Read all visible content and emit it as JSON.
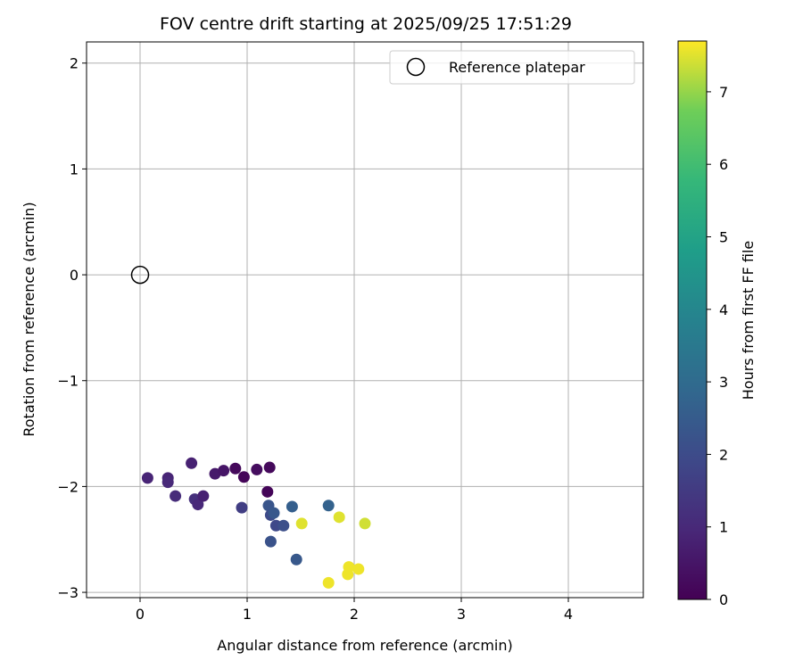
{
  "chart_data": {
    "type": "scatter",
    "title": "FOV centre drift starting at 2025/09/25 17:51:29",
    "xlabel": "Angular distance from reference (arcmin)",
    "ylabel": "Rotation from reference (arcmin)",
    "xlim": [
      -0.5,
      4.7
    ],
    "ylim": [
      -3.05,
      2.2
    ],
    "xticks": [
      0,
      1,
      2,
      3,
      4
    ],
    "yticks": [
      2,
      1,
      0,
      -1,
      -2,
      -3
    ],
    "xtick_labels": [
      "0",
      "1",
      "2",
      "3",
      "4"
    ],
    "ytick_labels": [
      "2",
      "1",
      "0",
      "−1",
      "−2",
      "−3"
    ],
    "grid": true,
    "legend": {
      "position": "top-right",
      "label": "Reference platepar"
    },
    "reference_point": {
      "x": 0,
      "y": 0
    },
    "colorbar": {
      "label": "Hours from first FF file",
      "range": [
        0,
        7.7
      ],
      "ticks": [
        0,
        1,
        2,
        3,
        4,
        5,
        6,
        7
      ],
      "tick_labels": [
        "0",
        "1",
        "2",
        "3",
        "4",
        "5",
        "6",
        "7"
      ],
      "colormap": "viridis"
    },
    "points": [
      {
        "x": 0.07,
        "y": -1.92,
        "c": 0.9
      },
      {
        "x": 0.26,
        "y": -1.92,
        "c": 0.9
      },
      {
        "x": 0.26,
        "y": -1.96,
        "c": 1.0
      },
      {
        "x": 0.33,
        "y": -2.09,
        "c": 1.1
      },
      {
        "x": 0.48,
        "y": -1.78,
        "c": 0.8
      },
      {
        "x": 0.51,
        "y": -2.12,
        "c": 1.2
      },
      {
        "x": 0.54,
        "y": -2.17,
        "c": 1.0
      },
      {
        "x": 0.59,
        "y": -2.09,
        "c": 0.8
      },
      {
        "x": 0.7,
        "y": -1.88,
        "c": 0.6
      },
      {
        "x": 0.78,
        "y": -1.85,
        "c": 0.5
      },
      {
        "x": 0.89,
        "y": -1.83,
        "c": 0.2
      },
      {
        "x": 0.95,
        "y": -2.2,
        "c": 1.6
      },
      {
        "x": 0.97,
        "y": -1.91,
        "c": 0.1
      },
      {
        "x": 1.09,
        "y": -1.84,
        "c": 0.3
      },
      {
        "x": 1.19,
        "y": -2.05,
        "c": 0.1
      },
      {
        "x": 1.21,
        "y": -1.82,
        "c": 0.2
      },
      {
        "x": 1.2,
        "y": -2.18,
        "c": 2.3
      },
      {
        "x": 1.22,
        "y": -2.27,
        "c": 2.0
      },
      {
        "x": 1.25,
        "y": -2.25,
        "c": 2.4
      },
      {
        "x": 1.22,
        "y": -2.52,
        "c": 2.2
      },
      {
        "x": 1.27,
        "y": -2.37,
        "c": 1.9
      },
      {
        "x": 1.34,
        "y": -2.37,
        "c": 2.1
      },
      {
        "x": 1.42,
        "y": -2.19,
        "c": 2.6
      },
      {
        "x": 1.46,
        "y": -2.69,
        "c": 2.4
      },
      {
        "x": 1.51,
        "y": -2.35,
        "c": 7.5
      },
      {
        "x": 1.76,
        "y": -2.18,
        "c": 2.7
      },
      {
        "x": 1.76,
        "y": -2.91,
        "c": 7.6
      },
      {
        "x": 1.86,
        "y": -2.29,
        "c": 7.5
      },
      {
        "x": 1.94,
        "y": -2.83,
        "c": 7.6
      },
      {
        "x": 1.95,
        "y": -2.76,
        "c": 7.6
      },
      {
        "x": 2.04,
        "y": -2.78,
        "c": 7.6
      },
      {
        "x": 2.1,
        "y": -2.35,
        "c": 7.4
      }
    ]
  }
}
